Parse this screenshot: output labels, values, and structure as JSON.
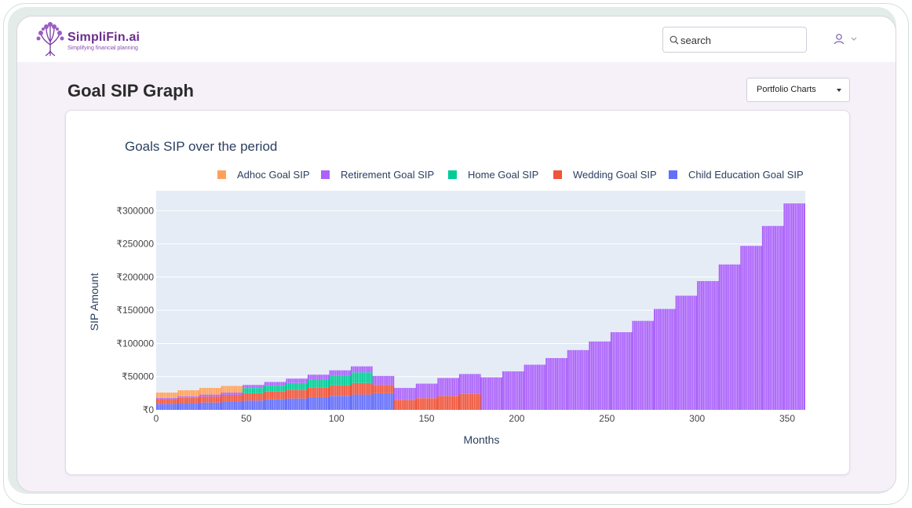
{
  "app": {
    "brand_name": "SimpliFin.ai",
    "brand_tagline": "Simplifying financial planning"
  },
  "search": {
    "placeholder": "search"
  },
  "page": {
    "title": "Goal SIP Graph",
    "dropdown_label": "Portfolio Charts"
  },
  "icons": {
    "search": "search-icon",
    "user": "user-icon",
    "chevron": "chevron-down-icon",
    "caret": "caret-down-icon"
  },
  "chart_data": {
    "type": "bar",
    "stacked": true,
    "title": "Goals SIP over the period",
    "xlabel": "Months",
    "ylabel": "SIP Amount",
    "xlim": [
      0,
      360
    ],
    "ylim": [
      0,
      330000
    ],
    "xticks": [
      0,
      50,
      100,
      150,
      200,
      250,
      300,
      350
    ],
    "yticks": [
      {
        "value": 0,
        "label": "₹0"
      },
      {
        "value": 50000,
        "label": "₹50000"
      },
      {
        "value": 100000,
        "label": "₹100000"
      },
      {
        "value": 150000,
        "label": "₹150000"
      },
      {
        "value": 200000,
        "label": "₹200000"
      },
      {
        "value": 250000,
        "label": "₹250000"
      },
      {
        "value": 300000,
        "label": "₹300000"
      }
    ],
    "legend_position": "top",
    "x_step_months": 12,
    "step_starts": [
      0,
      12,
      24,
      36,
      48,
      60,
      72,
      84,
      96,
      108,
      120,
      132,
      144,
      156,
      168,
      180,
      192,
      204,
      216,
      228,
      240,
      252,
      264,
      276,
      288,
      300,
      312,
      324,
      336,
      348
    ],
    "series": [
      {
        "name": "Child Education Goal SIP",
        "color": "#636efa",
        "values": [
          9000,
          10000,
          11000,
          12500,
          14000,
          15500,
          17000,
          19000,
          21000,
          23000,
          25000,
          0,
          0,
          0,
          0,
          0,
          0,
          0,
          0,
          0,
          0,
          0,
          0,
          0,
          0,
          0,
          0,
          0,
          0,
          0
        ]
      },
      {
        "name": "Wedding Goal SIP",
        "color": "#ef553b",
        "values": [
          7000,
          8000,
          9000,
          10000,
          11000,
          12000,
          13000,
          14500,
          16000,
          17500,
          12500,
          15000,
          17500,
          21000,
          24000,
          0,
          0,
          0,
          0,
          0,
          0,
          0,
          0,
          0,
          0,
          0,
          0,
          0,
          0,
          0
        ]
      },
      {
        "name": "Home Goal SIP",
        "color": "#00cc96",
        "values": [
          0,
          0,
          0,
          0,
          8000,
          9000,
          10500,
          12000,
          14000,
          16000,
          0,
          0,
          0,
          0,
          0,
          0,
          0,
          0,
          0,
          0,
          0,
          0,
          0,
          0,
          0,
          0,
          0,
          0,
          0,
          0
        ]
      },
      {
        "name": "Retirement Goal SIP",
        "color": "#ab63fa",
        "values": [
          2000,
          2500,
          3000,
          3500,
          4500,
          5500,
          6500,
          7500,
          8500,
          9000,
          13500,
          18000,
          22000,
          27000,
          30000,
          49000,
          58000,
          68000,
          78000,
          90000,
          103000,
          117000,
          134000,
          152000,
          172000,
          194000,
          219000,
          247000,
          277000,
          311000
        ]
      },
      {
        "name": "Adhoc Goal SIP",
        "color": "#ffa15a",
        "values": [
          8000,
          9000,
          10000,
          10000,
          0,
          0,
          0,
          0,
          0,
          0,
          0,
          0,
          0,
          0,
          0,
          0,
          0,
          0,
          0,
          0,
          0,
          0,
          0,
          0,
          0,
          0,
          0,
          0,
          0,
          0
        ]
      }
    ],
    "legend_order": [
      "Adhoc Goal SIP",
      "Retirement Goal SIP",
      "Home Goal SIP",
      "Wedding Goal SIP",
      "Child Education Goal SIP"
    ]
  }
}
